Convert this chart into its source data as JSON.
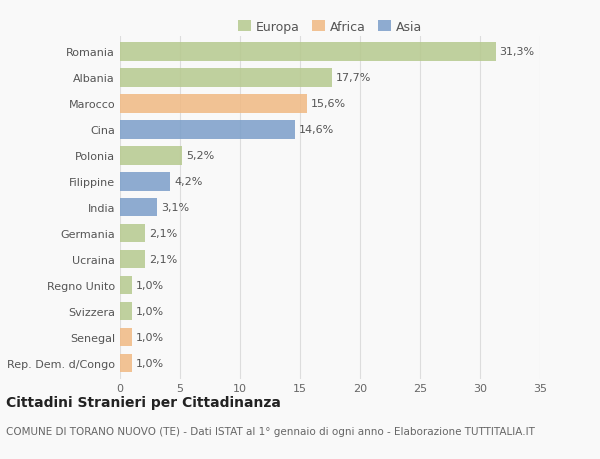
{
  "countries": [
    "Romania",
    "Albania",
    "Marocco",
    "Cina",
    "Polonia",
    "Filippine",
    "India",
    "Germania",
    "Ucraina",
    "Regno Unito",
    "Svizzera",
    "Senegal",
    "Rep. Dem. d/Congo"
  ],
  "values": [
    31.3,
    17.7,
    15.6,
    14.6,
    5.2,
    4.2,
    3.1,
    2.1,
    2.1,
    1.0,
    1.0,
    1.0,
    1.0
  ],
  "labels": [
    "31,3%",
    "17,7%",
    "15,6%",
    "14,6%",
    "5,2%",
    "4,2%",
    "3,1%",
    "2,1%",
    "2,1%",
    "1,0%",
    "1,0%",
    "1,0%",
    "1,0%"
  ],
  "continents": [
    "Europa",
    "Europa",
    "Africa",
    "Asia",
    "Europa",
    "Asia",
    "Asia",
    "Europa",
    "Europa",
    "Europa",
    "Europa",
    "Africa",
    "Africa"
  ],
  "colors": {
    "Europa": "#b5c98e",
    "Africa": "#f0b983",
    "Asia": "#7b9ec9"
  },
  "xlim": [
    0,
    35
  ],
  "xticks": [
    0,
    5,
    10,
    15,
    20,
    25,
    30,
    35
  ],
  "title": "Cittadini Stranieri per Cittadinanza",
  "subtitle": "COMUNE DI TORANO NUOVO (TE) - Dati ISTAT al 1° gennaio di ogni anno - Elaborazione TUTTITALIA.IT",
  "background_color": "#f9f9f9",
  "grid_color": "#dddddd",
  "bar_height": 0.72,
  "title_fontsize": 10,
  "subtitle_fontsize": 7.5,
  "label_fontsize": 8,
  "tick_fontsize": 8,
  "legend_fontsize": 9
}
